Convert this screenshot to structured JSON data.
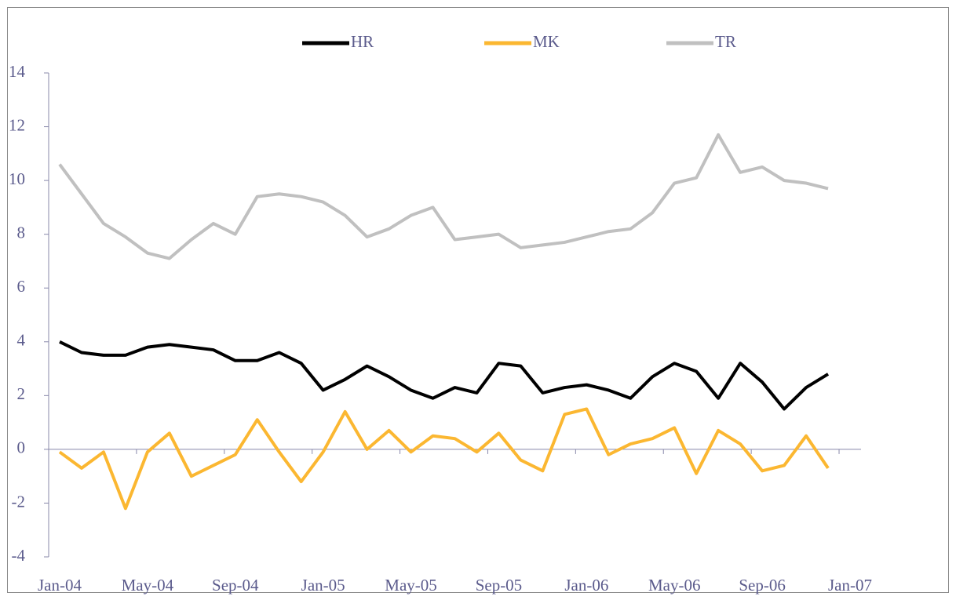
{
  "chart_data": {
    "type": "line",
    "categories": [
      "Jan-04",
      null,
      null,
      null,
      "May-04",
      null,
      null,
      null,
      "Sep-04",
      null,
      null,
      null,
      "Jan-05",
      null,
      null,
      null,
      "May-05",
      null,
      null,
      null,
      "Sep-05",
      null,
      null,
      null,
      "Jan-06",
      null,
      null,
      null,
      "May-06",
      null,
      null,
      null,
      "Sep-06",
      null,
      null,
      null,
      "Jan-07"
    ],
    "series": [
      {
        "name": "HR",
        "color": "#000000",
        "values": [
          4.0,
          3.6,
          3.5,
          3.5,
          3.8,
          3.9,
          3.8,
          3.7,
          3.3,
          3.3,
          3.6,
          3.2,
          2.2,
          2.6,
          3.1,
          2.7,
          2.2,
          1.9,
          2.3,
          2.1,
          3.2,
          3.1,
          2.1,
          2.3,
          2.4,
          2.2,
          1.9,
          2.7,
          3.2,
          2.9,
          1.9,
          3.2,
          2.5,
          1.5,
          2.3,
          2.8,
          null
        ]
      },
      {
        "name": "MK",
        "color": "#fbb731",
        "values": [
          -0.1,
          -0.7,
          -0.1,
          -2.2,
          -0.1,
          0.6,
          -1.0,
          -0.6,
          -0.2,
          1.1,
          -0.1,
          -1.2,
          -0.1,
          1.4,
          0.0,
          0.7,
          -0.1,
          0.5,
          0.4,
          -0.1,
          0.6,
          -0.4,
          -0.8,
          1.3,
          1.5,
          -0.2,
          0.2,
          0.4,
          0.8,
          -0.9,
          0.7,
          0.2,
          -0.8,
          -0.6,
          0.5,
          -0.7,
          null
        ]
      },
      {
        "name": "TR",
        "color": "#c0c0c0",
        "values": [
          10.6,
          9.5,
          8.4,
          7.9,
          7.3,
          7.1,
          7.8,
          8.4,
          8.0,
          9.4,
          9.5,
          9.4,
          9.2,
          8.7,
          7.9,
          8.2,
          8.7,
          9.0,
          7.8,
          7.9,
          8.0,
          7.5,
          7.6,
          7.7,
          7.9,
          8.1,
          8.2,
          8.8,
          9.9,
          10.1,
          11.7,
          10.3,
          10.5,
          10.0,
          9.9,
          9.7,
          null
        ]
      }
    ],
    "ylim": [
      -4,
      14
    ],
    "yticks": [
      -4,
      -2,
      0,
      2,
      4,
      6,
      8,
      10,
      12,
      14
    ],
    "legend": "top",
    "grid": false
  }
}
